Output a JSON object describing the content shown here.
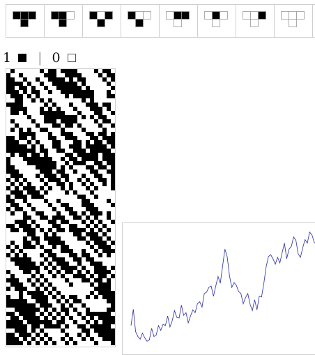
{
  "rule": {
    "bits": [
      1,
      1,
      1,
      1,
      0,
      0,
      0,
      0
    ],
    "neighborhoods": [
      "111",
      "110",
      "101",
      "100",
      "011",
      "010",
      "001",
      "000"
    ]
  },
  "legend": {
    "one_label": "1",
    "separator": "|",
    "zero_label": "0"
  },
  "colors": {
    "cell_on": "#000000",
    "cell_off": "#ffffff",
    "tile_border": "#cfcfcf",
    "plot_line": "#3b3fa8"
  },
  "chart_data": {
    "type": "line",
    "series": [
      {
        "values": [
          38,
          62,
          29,
          22,
          18,
          27,
          20,
          15,
          17,
          34,
          22,
          24,
          38,
          31,
          40,
          38,
          52,
          36,
          45,
          60,
          50,
          49,
          68,
          53,
          57,
          42,
          52,
          61,
          57,
          70,
          73,
          65,
          85,
          87,
          94,
          96,
          81,
          96,
          110,
          100,
          125,
          150,
          139,
          111,
          94,
          101,
          97,
          88,
          85,
          70,
          79,
          85,
          69,
          60,
          76,
          61,
          81,
          80,
          100,
          124,
          139,
          142,
          136,
          128,
          138,
          130,
          145,
          159,
          136,
          150,
          154,
          168,
          163,
          143,
          138,
          152,
          164,
          159,
          175,
          171,
          160,
          157,
          172,
          182,
          160
        ]
      }
    ]
  }
}
